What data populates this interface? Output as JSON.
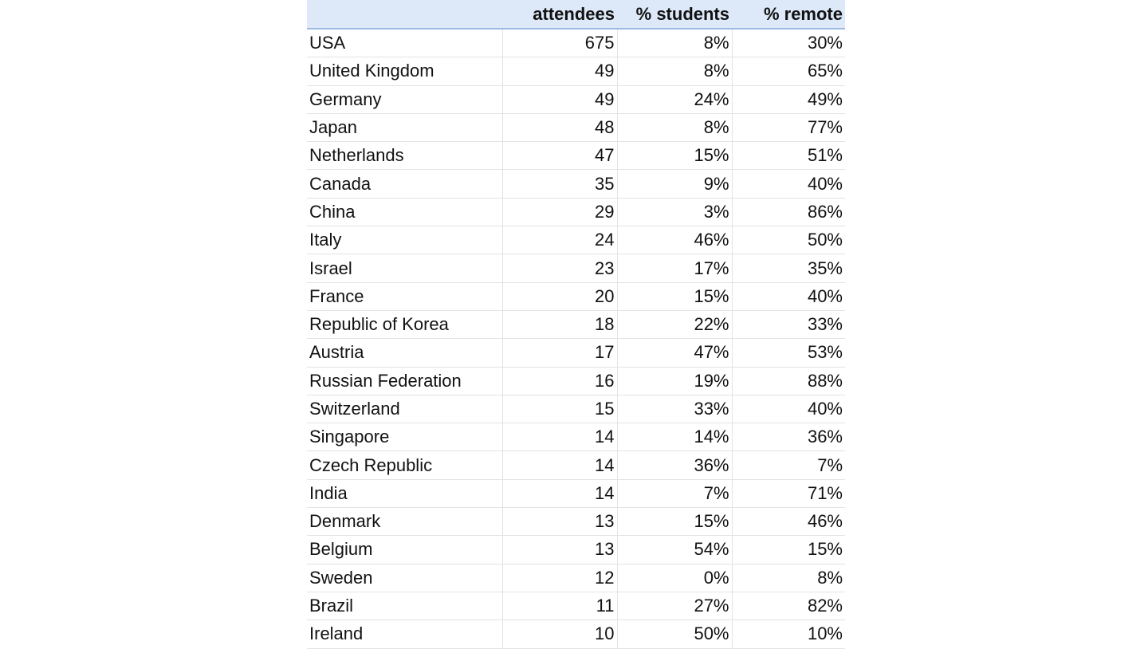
{
  "columns": [
    "",
    "attendees",
    "% students",
    "% remote"
  ],
  "rows": [
    [
      "USA",
      "675",
      "8%",
      "30%"
    ],
    [
      "United Kingdom",
      "49",
      "8%",
      "65%"
    ],
    [
      "Germany",
      "49",
      "24%",
      "49%"
    ],
    [
      "Japan",
      "48",
      "8%",
      "77%"
    ],
    [
      "Netherlands",
      "47",
      "15%",
      "51%"
    ],
    [
      "Canada",
      "35",
      "9%",
      "40%"
    ],
    [
      "China",
      "29",
      "3%",
      "86%"
    ],
    [
      "Italy",
      "24",
      "46%",
      "50%"
    ],
    [
      "Israel",
      "23",
      "17%",
      "35%"
    ],
    [
      "France",
      "20",
      "15%",
      "40%"
    ],
    [
      "Republic of Korea",
      "18",
      "22%",
      "33%"
    ],
    [
      "Austria",
      "17",
      "47%",
      "53%"
    ],
    [
      "Russian Federation",
      "16",
      "19%",
      "88%"
    ],
    [
      "Switzerland",
      "15",
      "33%",
      "40%"
    ],
    [
      "Singapore",
      "14",
      "14%",
      "36%"
    ],
    [
      "Czech Republic",
      "14",
      "36%",
      "7%"
    ],
    [
      "India",
      "14",
      "7%",
      "71%"
    ],
    [
      "Denmark",
      "13",
      "15%",
      "46%"
    ],
    [
      "Belgium",
      "13",
      "54%",
      "15%"
    ],
    [
      "Sweden",
      "12",
      "0%",
      "8%"
    ],
    [
      "Brazil",
      "11",
      "27%",
      "82%"
    ],
    [
      "Ireland",
      "10",
      "50%",
      "10%"
    ]
  ],
  "colors": {
    "header_bg": "#dde9f8",
    "header_border": "#9bb9e2"
  }
}
